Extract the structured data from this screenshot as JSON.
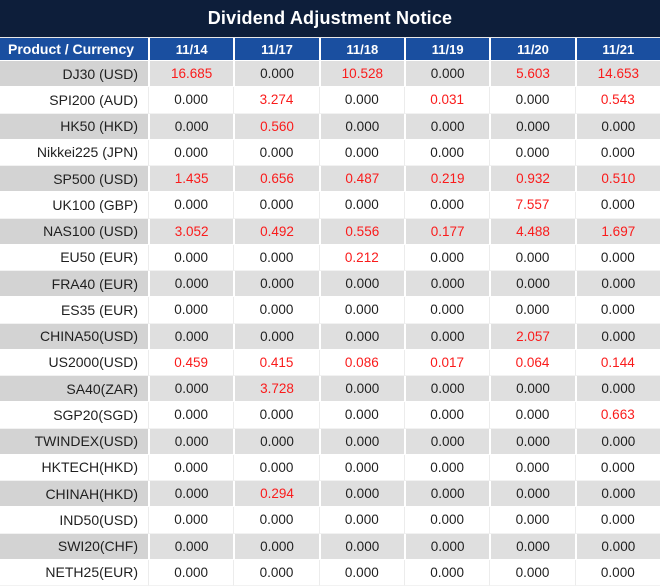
{
  "title": "Dividend Adjustment Notice",
  "table": {
    "product_header": "Product / Currency",
    "date_headers": [
      "11/14",
      "11/17",
      "11/18",
      "11/19",
      "11/20",
      "11/21"
    ],
    "rows": [
      {
        "product": "DJ30 (USD)",
        "values": [
          "16.685",
          "0.000",
          "10.528",
          "0.000",
          "5.603",
          "14.653"
        ],
        "red": [
          true,
          false,
          true,
          false,
          true,
          true
        ]
      },
      {
        "product": "SPI200 (AUD)",
        "values": [
          "0.000",
          "3.274",
          "0.000",
          "0.031",
          "0.000",
          "0.543"
        ],
        "red": [
          false,
          true,
          false,
          true,
          false,
          true
        ]
      },
      {
        "product": "HK50 (HKD)",
        "values": [
          "0.000",
          "0.560",
          "0.000",
          "0.000",
          "0.000",
          "0.000"
        ],
        "red": [
          false,
          true,
          false,
          false,
          false,
          false
        ]
      },
      {
        "product": "Nikkei225 (JPN)",
        "values": [
          "0.000",
          "0.000",
          "0.000",
          "0.000",
          "0.000",
          "0.000"
        ],
        "red": [
          false,
          false,
          false,
          false,
          false,
          false
        ]
      },
      {
        "product": "SP500 (USD)",
        "values": [
          "1.435",
          "0.656",
          "0.487",
          "0.219",
          "0.932",
          "0.510"
        ],
        "red": [
          true,
          true,
          true,
          true,
          true,
          true
        ]
      },
      {
        "product": "UK100 (GBP)",
        "values": [
          "0.000",
          "0.000",
          "0.000",
          "0.000",
          "7.557",
          "0.000"
        ],
        "red": [
          false,
          false,
          false,
          false,
          true,
          false
        ]
      },
      {
        "product": "NAS100 (USD)",
        "values": [
          "3.052",
          "0.492",
          "0.556",
          "0.177",
          "4.488",
          "1.697"
        ],
        "red": [
          true,
          true,
          true,
          true,
          true,
          true
        ]
      },
      {
        "product": "EU50 (EUR)",
        "values": [
          "0.000",
          "0.000",
          "0.212",
          "0.000",
          "0.000",
          "0.000"
        ],
        "red": [
          false,
          false,
          true,
          false,
          false,
          false
        ]
      },
      {
        "product": "FRA40 (EUR)",
        "values": [
          "0.000",
          "0.000",
          "0.000",
          "0.000",
          "0.000",
          "0.000"
        ],
        "red": [
          false,
          false,
          false,
          false,
          false,
          false
        ]
      },
      {
        "product": "ES35 (EUR)",
        "values": [
          "0.000",
          "0.000",
          "0.000",
          "0.000",
          "0.000",
          "0.000"
        ],
        "red": [
          false,
          false,
          false,
          false,
          false,
          false
        ]
      },
      {
        "product": "CHINA50(USD)",
        "values": [
          "0.000",
          "0.000",
          "0.000",
          "0.000",
          "2.057",
          "0.000"
        ],
        "red": [
          false,
          false,
          false,
          false,
          true,
          false
        ]
      },
      {
        "product": "US2000(USD)",
        "values": [
          "0.459",
          "0.415",
          "0.086",
          "0.017",
          "0.064",
          "0.144"
        ],
        "red": [
          true,
          true,
          true,
          true,
          true,
          true
        ]
      },
      {
        "product": "SA40(ZAR)",
        "values": [
          "0.000",
          "3.728",
          "0.000",
          "0.000",
          "0.000",
          "0.000"
        ],
        "red": [
          false,
          true,
          false,
          false,
          false,
          false
        ]
      },
      {
        "product": "SGP20(SGD)",
        "values": [
          "0.000",
          "0.000",
          "0.000",
          "0.000",
          "0.000",
          "0.663"
        ],
        "red": [
          false,
          false,
          false,
          false,
          false,
          true
        ]
      },
      {
        "product": "TWINDEX(USD)",
        "values": [
          "0.000",
          "0.000",
          "0.000",
          "0.000",
          "0.000",
          "0.000"
        ],
        "red": [
          false,
          false,
          false,
          false,
          false,
          false
        ]
      },
      {
        "product": "HKTECH(HKD)",
        "values": [
          "0.000",
          "0.000",
          "0.000",
          "0.000",
          "0.000",
          "0.000"
        ],
        "red": [
          false,
          false,
          false,
          false,
          false,
          false
        ]
      },
      {
        "product": "CHINAH(HKD)",
        "values": [
          "0.000",
          "0.294",
          "0.000",
          "0.000",
          "0.000",
          "0.000"
        ],
        "red": [
          false,
          true,
          false,
          false,
          false,
          false
        ]
      },
      {
        "product": "IND50(USD)",
        "values": [
          "0.000",
          "0.000",
          "0.000",
          "0.000",
          "0.000",
          "0.000"
        ],
        "red": [
          false,
          false,
          false,
          false,
          false,
          false
        ]
      },
      {
        "product": "SWI20(CHF)",
        "values": [
          "0.000",
          "0.000",
          "0.000",
          "0.000",
          "0.000",
          "0.000"
        ],
        "red": [
          false,
          false,
          false,
          false,
          false,
          false
        ]
      },
      {
        "product": "NETH25(EUR)",
        "values": [
          "0.000",
          "0.000",
          "0.000",
          "0.000",
          "0.000",
          "0.000"
        ],
        "red": [
          false,
          false,
          false,
          false,
          false,
          false
        ]
      }
    ]
  },
  "colors": {
    "title_bg": "#0d1e3a",
    "header_bg": "#1a4fa0",
    "row_gray_product": "#d3d3d3",
    "row_gray_value": "#dfdfdf",
    "value_red": "#fa1b1b",
    "value_black": "#1f1f1f"
  }
}
